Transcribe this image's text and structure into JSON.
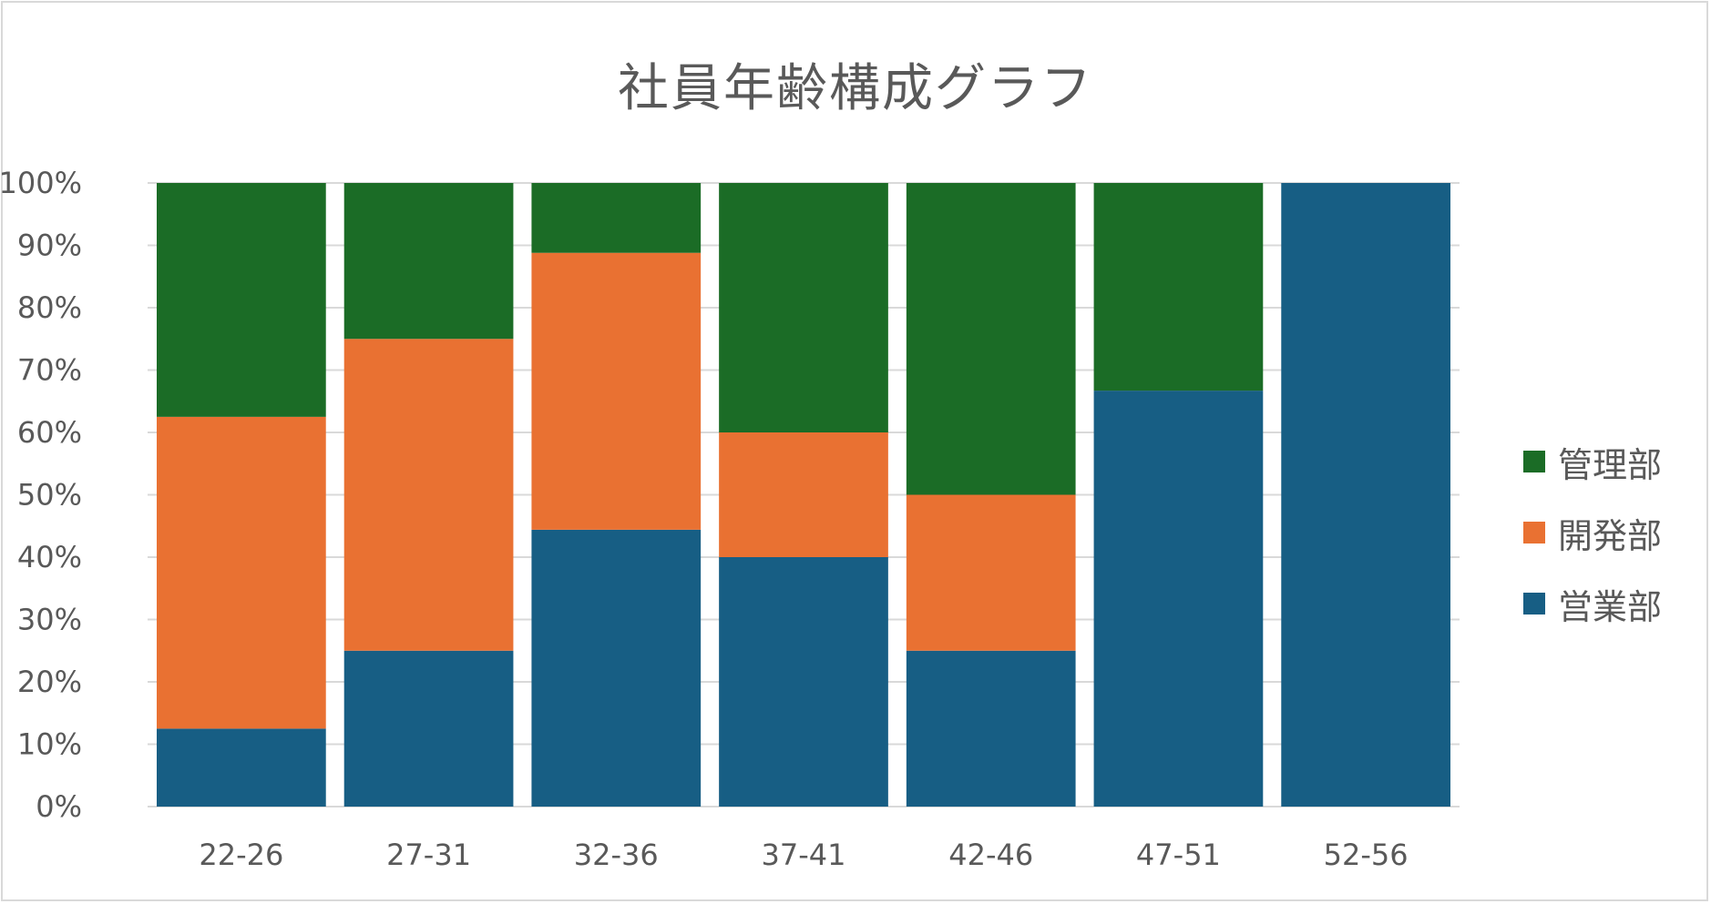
{
  "chart_data": {
    "type": "bar",
    "stacked": true,
    "normalized": true,
    "title": "社員年齢構成グラフ",
    "categories": [
      "22-26",
      "27-31",
      "32-36",
      "37-41",
      "42-46",
      "47-51",
      "52-56"
    ],
    "series": [
      {
        "name": "営業部",
        "color": "#175E84",
        "values": [
          12.5,
          25,
          44.4,
          40,
          25,
          66.7,
          100
        ]
      },
      {
        "name": "開発部",
        "color": "#E97132",
        "values": [
          50,
          50,
          44.4,
          20,
          25,
          0,
          0
        ]
      },
      {
        "name": "管理部",
        "color": "#1B6C26",
        "values": [
          37.5,
          25,
          11.2,
          40,
          50,
          33.3,
          0
        ]
      }
    ],
    "ylim": [
      0,
      100
    ],
    "yticks": [
      "0%",
      "10%",
      "20%",
      "30%",
      "40%",
      "50%",
      "60%",
      "70%",
      "80%",
      "90%",
      "100%"
    ],
    "grid": true,
    "legend_position": "right"
  },
  "legend": [
    {
      "label": "管理部",
      "color": "#1B6C26"
    },
    {
      "label": "開発部",
      "color": "#E97132"
    },
    {
      "label": "営業部",
      "color": "#175E84"
    }
  ]
}
